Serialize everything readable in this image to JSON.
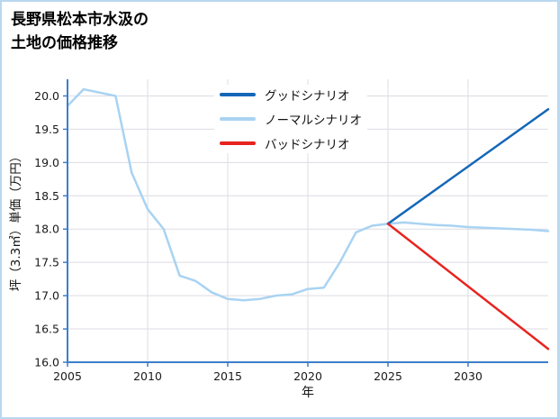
{
  "figure": {
    "title_line1": "長野県松本市水汲の",
    "title_line2": "土地の価格推移",
    "border_color": "#b9d8ef",
    "background_color": "#ffffff"
  },
  "axes": {
    "spine_color": "#3d7ec9",
    "grid_color": "#dcdce4",
    "tick_label_color": "#1a1a1a"
  },
  "chart_data": {
    "type": "line",
    "title": "長野県松本市水汲の土地の価格推移",
    "xlabel": "年",
    "ylabel": "坪（3.3㎡）単価（万円）",
    "xlim": [
      2005,
      2035
    ],
    "ylim": [
      16.0,
      20.25
    ],
    "xticks": [
      2005,
      2010,
      2015,
      2020,
      2025,
      2030
    ],
    "yticks": [
      16.0,
      16.5,
      17.0,
      17.5,
      18.0,
      18.5,
      19.0,
      19.5,
      20.0
    ],
    "grid": true,
    "legend_position": "upper center",
    "series": [
      {
        "name": "グッドシナリオ",
        "color": "#1567b8",
        "x": [
          2025,
          2035
        ],
        "values": [
          18.08,
          19.8
        ]
      },
      {
        "name": "ノーマルシナリオ",
        "color": "#a9d3f2",
        "x": [
          2005,
          2006,
          2007,
          2008,
          2009,
          2010,
          2011,
          2012,
          2013,
          2014,
          2015,
          2016,
          2017,
          2018,
          2019,
          2020,
          2021,
          2022,
          2023,
          2024,
          2025,
          2026,
          2027,
          2028,
          2029,
          2030,
          2031,
          2032,
          2033,
          2034,
          2035
        ],
        "values": [
          19.85,
          20.1,
          20.05,
          20.0,
          18.85,
          18.3,
          18.0,
          17.3,
          17.22,
          17.05,
          16.95,
          16.93,
          16.95,
          17.0,
          17.02,
          17.1,
          17.12,
          17.5,
          17.95,
          18.05,
          18.08,
          18.1,
          18.08,
          18.06,
          18.05,
          18.03,
          18.02,
          18.01,
          18.0,
          17.99,
          17.97
        ]
      },
      {
        "name": "バッドシナリオ",
        "color": "#e8231f",
        "x": [
          2025,
          2035
        ],
        "values": [
          18.08,
          16.2
        ]
      }
    ]
  }
}
